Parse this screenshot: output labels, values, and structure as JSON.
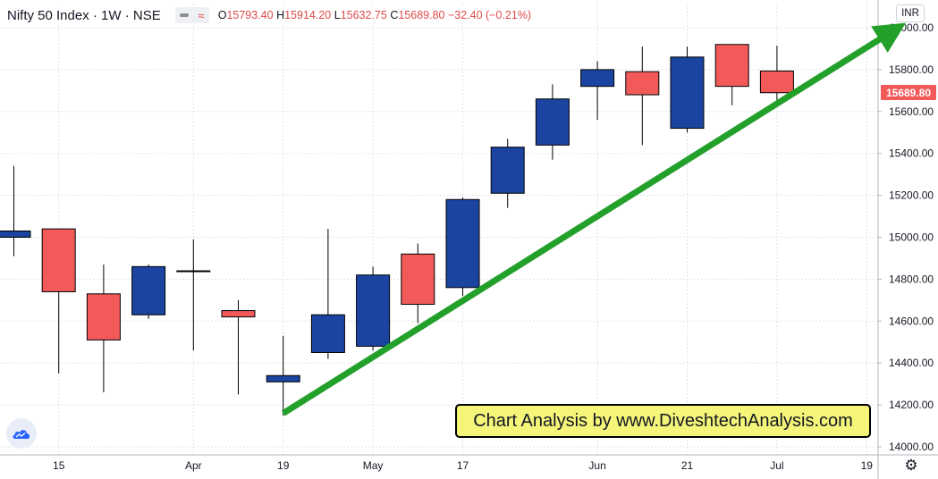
{
  "header": {
    "title": "Nifty 50 Index · 1W · NSE",
    "ohlc": [
      {
        "label": "O",
        "value": "15793.40"
      },
      {
        "label": "H",
        "value": "15914.20"
      },
      {
        "label": "L",
        "value": "15632.75"
      },
      {
        "label": "C",
        "value": "15689.80"
      },
      {
        "label": "",
        "value": "−32.40 (−0.21%)"
      }
    ]
  },
  "currency": "INR",
  "last_price_label": "15689.80",
  "banner_text": "Chart Analysis by www.DiveshtechAnalysis.com",
  "icons": {
    "logo": "tradingview-cloud-icon",
    "settings": "gear-icon",
    "visibility": "eye-icon"
  },
  "colors": {
    "up": "#1b44a0",
    "down": "#f25a5a",
    "trend": "#22a02a",
    "banner_bg": "#f5f57a"
  },
  "chart_data": {
    "type": "candlestick",
    "title": "Nifty 50 Index · 1W · NSE",
    "ylim": [
      13950,
      16100
    ],
    "yticks": [
      14000,
      14200,
      14400,
      14600,
      14800,
      15000,
      15200,
      15400,
      15600,
      15800,
      16000
    ],
    "ytick_labels": [
      "14000.00",
      "14200.00",
      "14400.00",
      "14600.00",
      "14800.00",
      "15000.00",
      "15200.00",
      "15400.00",
      "15600.00",
      "15800.00",
      "16000.00"
    ],
    "xtick_labels": [
      {
        "index": 1,
        "label": "15"
      },
      {
        "index": 4,
        "label": "Apr"
      },
      {
        "index": 6,
        "label": "19"
      },
      {
        "index": 8,
        "label": "May"
      },
      {
        "index": 10,
        "label": "17"
      },
      {
        "index": 13,
        "label": "Jun"
      },
      {
        "index": 15,
        "label": "21"
      },
      {
        "index": 17,
        "label": "Jul"
      },
      {
        "index": 19,
        "label": "19"
      }
    ],
    "candles": [
      {
        "open": 15000,
        "high": 15340,
        "low": 14910,
        "close": 15030
      },
      {
        "open": 15040,
        "high": 15040,
        "low": 14350,
        "close": 14740
      },
      {
        "open": 14730,
        "high": 14870,
        "low": 14260,
        "close": 14510
      },
      {
        "open": 14630,
        "high": 14870,
        "low": 14610,
        "close": 14860
      },
      {
        "open": 14840,
        "high": 14990,
        "low": 14460,
        "close": 14840
      },
      {
        "open": 14650,
        "high": 14700,
        "low": 14250,
        "close": 14620
      },
      {
        "open": 14310,
        "high": 14530,
        "low": 14150,
        "close": 14340
      },
      {
        "open": 14450,
        "high": 15040,
        "low": 14420,
        "close": 14630
      },
      {
        "open": 14480,
        "high": 14860,
        "low": 14460,
        "close": 14820
      },
      {
        "open": 14920,
        "high": 14970,
        "low": 14590,
        "close": 14680
      },
      {
        "open": 14760,
        "high": 15190,
        "low": 14720,
        "close": 15180
      },
      {
        "open": 15210,
        "high": 15470,
        "low": 15140,
        "close": 15430
      },
      {
        "open": 15440,
        "high": 15730,
        "low": 15370,
        "close": 15660
      },
      {
        "open": 15720,
        "high": 15840,
        "low": 15560,
        "close": 15800
      },
      {
        "open": 15790,
        "high": 15910,
        "low": 15440,
        "close": 15680
      },
      {
        "open": 15520,
        "high": 15910,
        "low": 15500,
        "close": 15860
      },
      {
        "open": 15920,
        "high": 15920,
        "low": 15630,
        "close": 15720
      },
      {
        "open": 15793.4,
        "high": 15914.2,
        "low": 15632.75,
        "close": 15689.8
      }
    ],
    "trendline": {
      "from": {
        "index": 6,
        "value": 14160
      },
      "to": {
        "index": 19.7,
        "value": 16000
      }
    },
    "grid": true
  }
}
